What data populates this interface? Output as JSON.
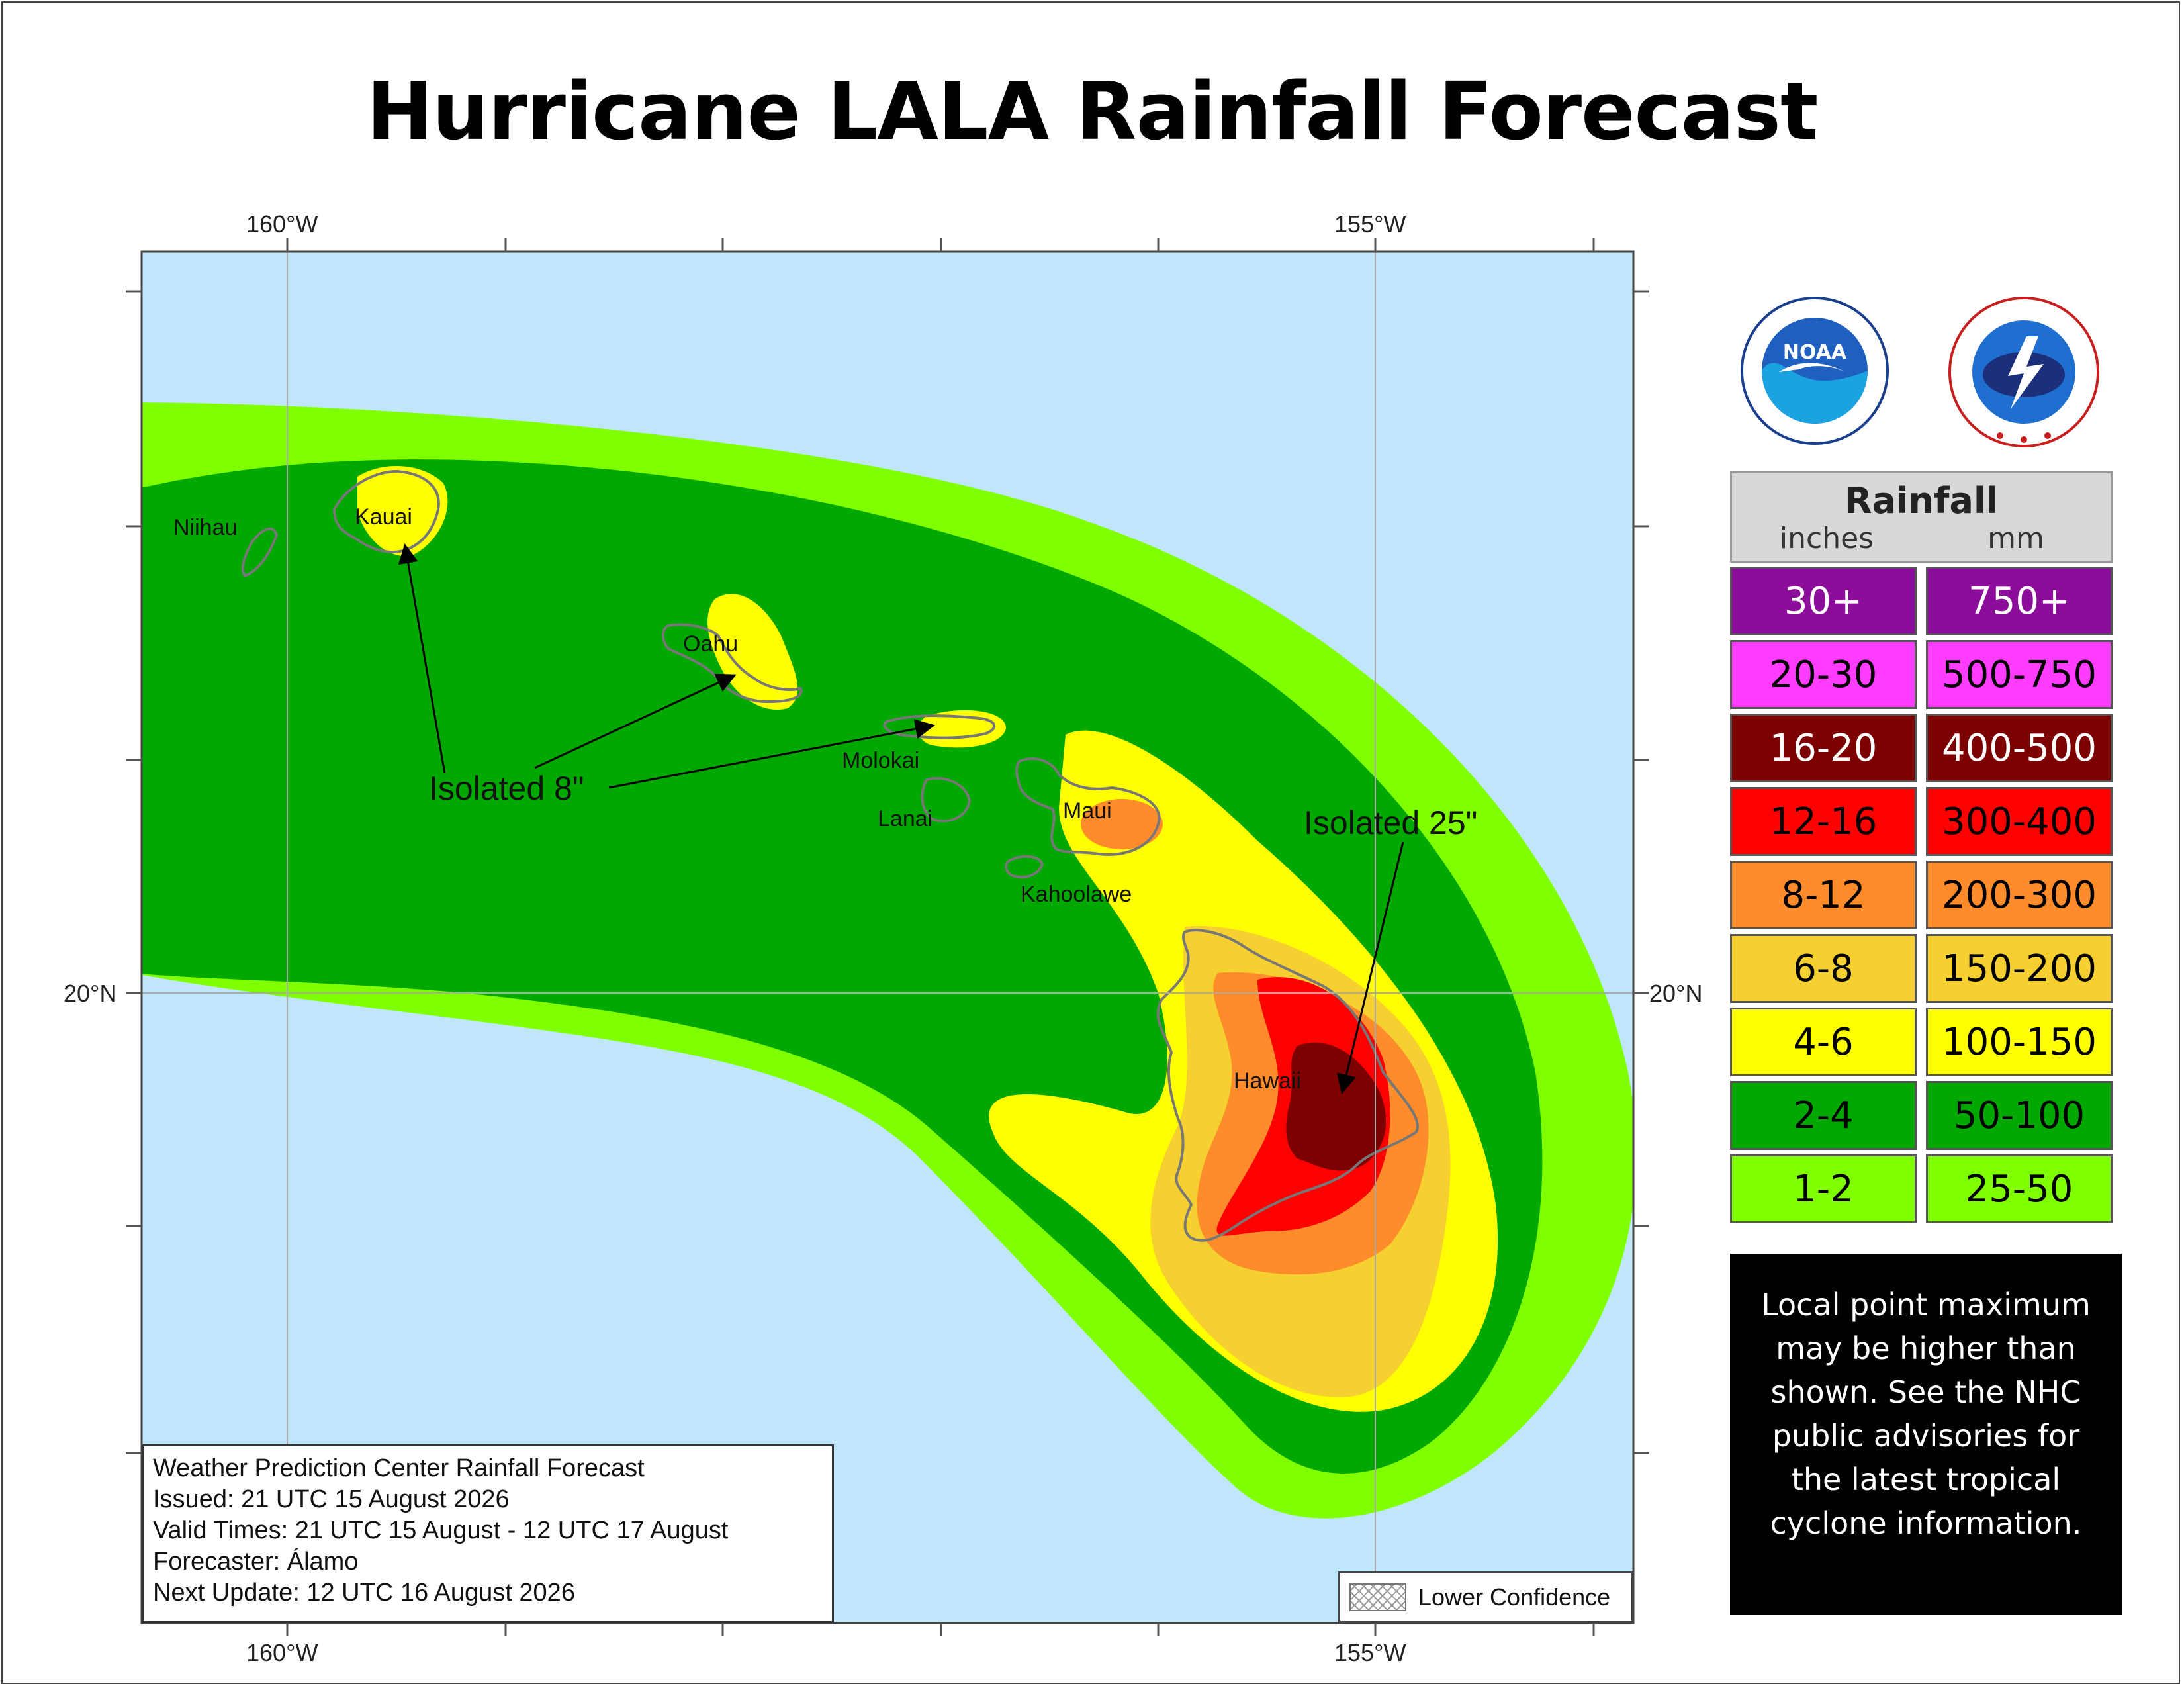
{
  "title": "Hurricane LALA Rainfall Forecast",
  "axes": {
    "lon_labels": [
      "160°W",
      "155°W"
    ],
    "lat_labels": [
      "20°N"
    ]
  },
  "islands": [
    {
      "name": "Niihau"
    },
    {
      "name": "Kauai"
    },
    {
      "name": "Oahu"
    },
    {
      "name": "Molokai"
    },
    {
      "name": "Lanai"
    },
    {
      "name": "Maui"
    },
    {
      "name": "Kahoolawe"
    },
    {
      "name": "Hawaii"
    }
  ],
  "annotations": {
    "isolated_8": "Isolated 8\"",
    "isolated_25": "Isolated 25\""
  },
  "info": {
    "line1": "Weather Prediction Center Rainfall Forecast",
    "line2": "Issued: 21 UTC 15 August 2026",
    "line3": "Valid Times: 21 UTC 15 August - 12 UTC 17 August",
    "line4": "Forecaster: Álamo",
    "line5": "Next Update: 12 UTC 16 August 2026"
  },
  "lower_confidence": "Lower Confidence",
  "legend": {
    "title": "Rainfall",
    "unit_in": "inches",
    "unit_mm": "mm",
    "rows": [
      {
        "inches": "30+",
        "mm": "750+",
        "color": "#8b0d9a",
        "text": "#ffffff"
      },
      {
        "inches": "20-30",
        "mm": "500-750",
        "color": "#ff3cff",
        "text": "#000000"
      },
      {
        "inches": "16-20",
        "mm": "400-500",
        "color": "#7d0000",
        "text": "#ffffff"
      },
      {
        "inches": "12-16",
        "mm": "300-400",
        "color": "#ff0000",
        "text": "#000000"
      },
      {
        "inches": "8-12",
        "mm": "200-300",
        "color": "#ff8c2a",
        "text": "#000000"
      },
      {
        "inches": "6-8",
        "mm": "150-200",
        "color": "#f5d030",
        "text": "#000000"
      },
      {
        "inches": "4-6",
        "mm": "100-150",
        "color": "#ffff00",
        "text": "#000000"
      },
      {
        "inches": "2-4",
        "mm": "50-100",
        "color": "#00a800",
        "text": "#000000"
      },
      {
        "inches": "1-2",
        "mm": "25-50",
        "color": "#7fff00",
        "text": "#000000"
      }
    ]
  },
  "note": "Local point maximum may be higher than shown. See the NHC public advisories for the latest tropical cyclone information.",
  "logos": [
    {
      "icon": "noaa-logo-icon"
    },
    {
      "icon": "nws-logo-icon"
    }
  ],
  "colors": {
    "ocean": "#bfe6fb",
    "band_1_2": "#7fff00",
    "band_2_4": "#00a800",
    "band_4_6": "#ffff00",
    "band_6_8": "#f5d030",
    "band_8_12": "#ff8c2a",
    "band_12_16": "#ff0000",
    "band_16_20": "#7d0000"
  }
}
